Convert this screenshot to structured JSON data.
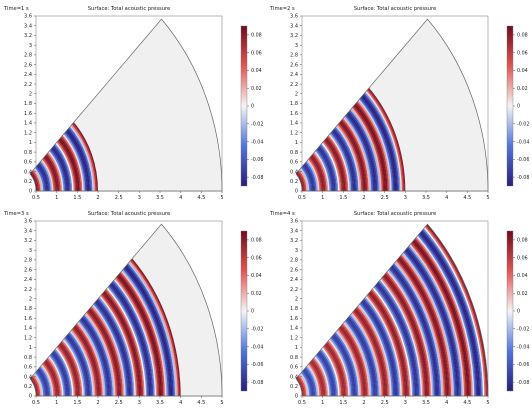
{
  "colors": {
    "low": "#2a1e7a",
    "mid_low": "#4f74dd",
    "zero": "#f4f4f4",
    "mid_high": "#e25555",
    "high": "#6e0d1b",
    "empty_fill": "#f0f0f0",
    "outline": "#666666"
  },
  "panels": [
    {
      "time_label": "Time=1 s",
      "title": "Surface: Total acoustic pressure",
      "wave_radius": 2.0
    },
    {
      "time_label": "Time=2 s",
      "title": "Surface: Total acoustic pressure",
      "wave_radius": 3.0
    },
    {
      "time_label": "Time=3 s",
      "title": "Surface: Total acoustic pressure",
      "wave_radius": 4.0
    },
    {
      "time_label": "Time=4 s",
      "title": "Surface: Total acoustic pressure",
      "wave_radius": 5.0
    }
  ],
  "axes": {
    "x_ticks": [
      "0.5",
      "1",
      "1.5",
      "2",
      "2.5",
      "3",
      "3.5",
      "4",
      "4.5",
      "5"
    ],
    "y_ticks": [
      "0",
      "0.2",
      "0.4",
      "0.6",
      "0.8",
      "1",
      "1.2",
      "1.4",
      "1.6",
      "1.8",
      "2",
      "2.2",
      "2.4",
      "2.6",
      "2.8",
      "3",
      "3.2",
      "3.4",
      "3.6"
    ],
    "x_range": [
      0.5,
      5.0
    ],
    "y_range": [
      0.0,
      3.6
    ]
  },
  "colorbar": {
    "ticks": [
      "0.08",
      "0.06",
      "0.04",
      "0.02",
      "0",
      "-0.02",
      "-0.04",
      "-0.06",
      "-0.08"
    ],
    "range": [
      -0.09,
      0.09
    ]
  }
}
